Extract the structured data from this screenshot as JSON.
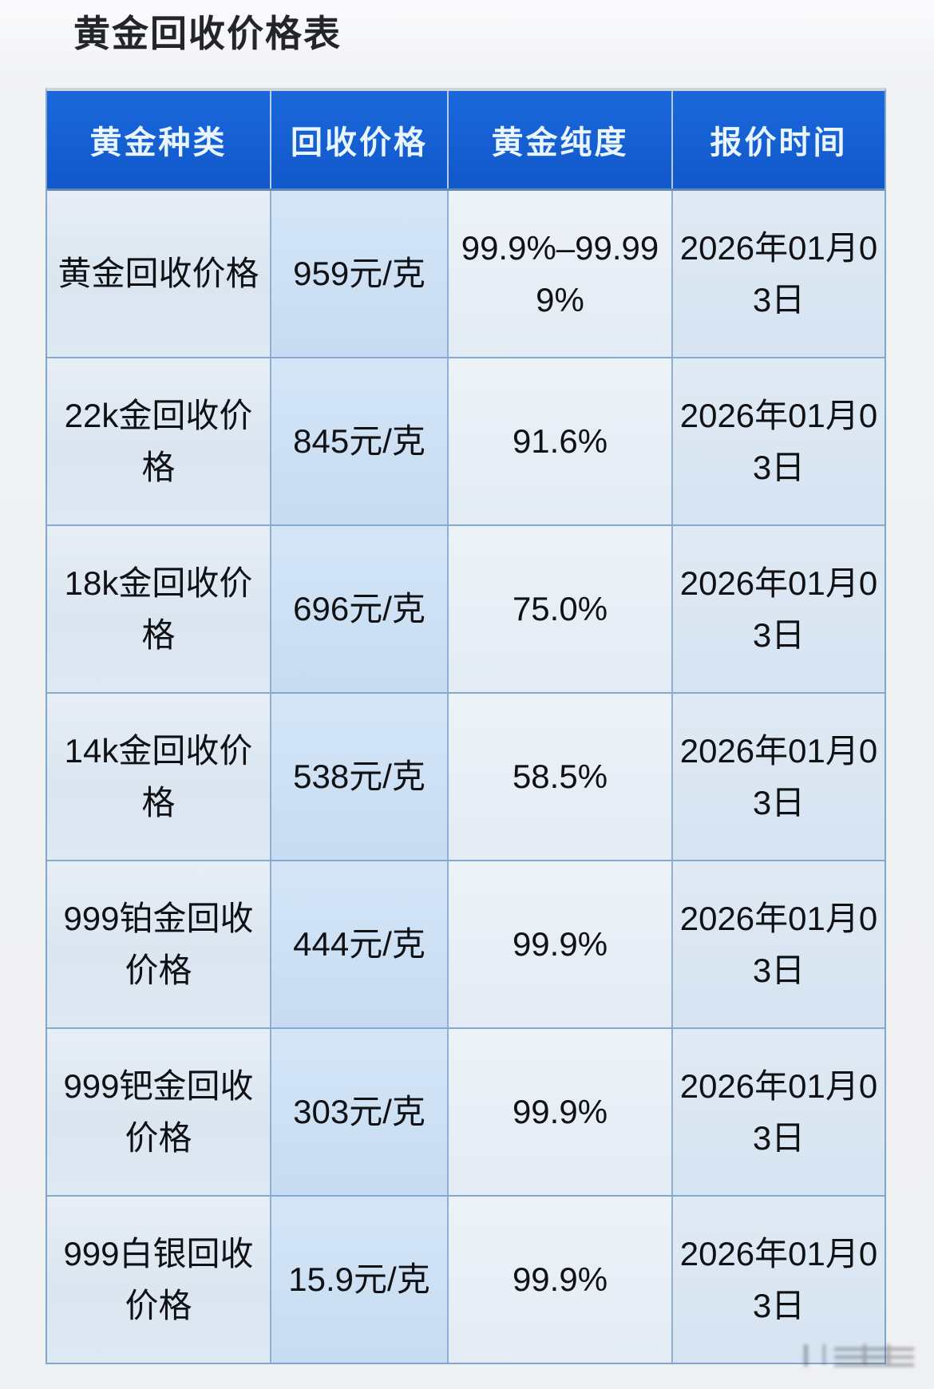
{
  "page": {
    "title": "黄金回收价格表"
  },
  "table": {
    "headers": [
      "黄金种类",
      "回收价格",
      "黄金纯度",
      "报价时间"
    ],
    "rows": [
      {
        "type": "黄金回收价格",
        "price": "959元/克",
        "purity": "99.9%–99.999%",
        "date": "2026年01月03日"
      },
      {
        "type": "22k金回收价格",
        "price": "845元/克",
        "purity": "91.6%",
        "date": "2026年01月03日"
      },
      {
        "type": "18k金回收价格",
        "price": "696元/克",
        "purity": "75.0%",
        "date": "2026年01月03日"
      },
      {
        "type": "14k金回收价格",
        "price": "538元/克",
        "purity": "58.5%",
        "date": "2026年01月03日"
      },
      {
        "type": "999铂金回收价格",
        "price": "444元/克",
        "purity": "99.9%",
        "date": "2026年01月03日"
      },
      {
        "type": "999钯金回收价格",
        "price": "303元/克",
        "purity": "99.9%",
        "date": "2026年01月03日"
      },
      {
        "type": "999白银回收价格",
        "price": "15.9元/克",
        "purity": "99.9%",
        "date": "2026年01月03日"
      }
    ],
    "colors": {
      "header_background": "#1661d7",
      "header_text": "#e9f5ff",
      "cell_text": "#101114",
      "grid_border": "#84aad2",
      "column_tints": [
        "#dfe8f1",
        "#cbdff3",
        "#e7edf5",
        "#dae5f1"
      ]
    }
  }
}
